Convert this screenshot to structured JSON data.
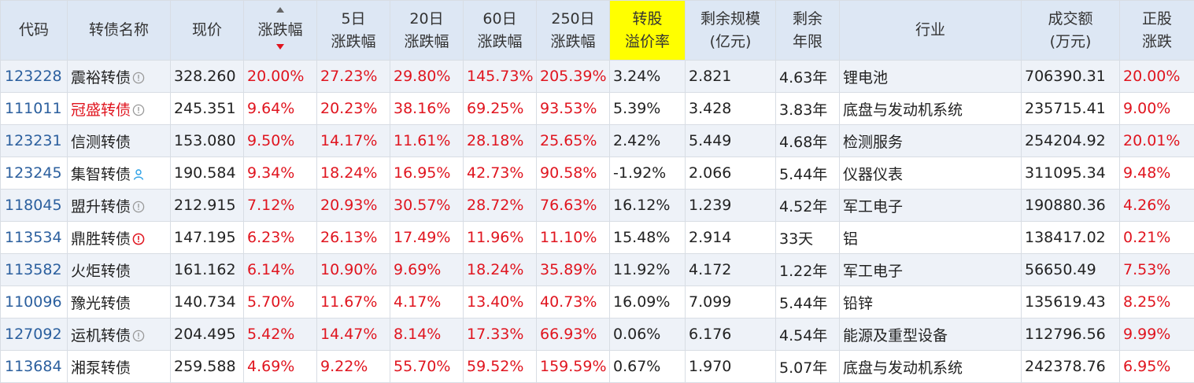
{
  "header": {
    "code": "代码",
    "name": "转债名称",
    "price": "现价",
    "change_pct": "涨跌幅",
    "d5": [
      "5日",
      "涨跌幅"
    ],
    "d20": [
      "20日",
      "涨跌幅"
    ],
    "d60": [
      "60日",
      "涨跌幅"
    ],
    "d250": [
      "250日",
      "涨跌幅"
    ],
    "premium": [
      "转股",
      "溢价率"
    ],
    "remaining_scale": [
      "剩余规模",
      "(亿元)"
    ],
    "remaining_term": [
      "剩余",
      "年限"
    ],
    "industry": "行业",
    "volume": [
      "成交额",
      "(万元)"
    ],
    "stock_change": [
      "正股",
      "涨跌"
    ]
  },
  "rows": [
    {
      "code": "123228",
      "name": "震裕转债",
      "name_red": false,
      "icon": "info-circle-icon",
      "price": "328.260",
      "chg": "20.00%",
      "d5": "27.23%",
      "d20": "29.80%",
      "d60": "145.73%",
      "d250": "205.39%",
      "premium": "3.24%",
      "scale": "2.821",
      "term": "4.63年",
      "industry": "锂电池",
      "volume": "706390.31",
      "stock": "20.00%"
    },
    {
      "code": "111011",
      "name": "冠盛转债",
      "name_red": true,
      "icon": "info-circle-icon",
      "price": "245.351",
      "chg": "9.64%",
      "d5": "20.23%",
      "d20": "38.16%",
      "d60": "69.25%",
      "d250": "93.53%",
      "premium": "5.39%",
      "scale": "3.428",
      "term": "3.83年",
      "industry": "底盘与发动机系统",
      "volume": "235715.41",
      "stock": "9.00%"
    },
    {
      "code": "123231",
      "name": "信测转债",
      "name_red": false,
      "icon": "",
      "price": "153.080",
      "chg": "9.50%",
      "d5": "14.17%",
      "d20": "11.61%",
      "d60": "28.18%",
      "d250": "25.65%",
      "premium": "2.42%",
      "scale": "5.449",
      "term": "4.68年",
      "industry": "检测服务",
      "volume": "254204.92",
      "stock": "20.01%"
    },
    {
      "code": "123245",
      "name": "集智转债",
      "name_red": false,
      "icon": "person-icon",
      "price": "190.584",
      "chg": "9.34%",
      "d5": "18.24%",
      "d20": "16.95%",
      "d60": "42.73%",
      "d250": "90.58%",
      "premium": "-1.92%",
      "scale": "2.066",
      "term": "5.44年",
      "industry": "仪器仪表",
      "volume": "311095.34",
      "stock": "9.48%"
    },
    {
      "code": "118045",
      "name": "盟升转债",
      "name_red": false,
      "icon": "info-circle-icon",
      "price": "212.915",
      "chg": "7.12%",
      "d5": "20.93%",
      "d20": "30.57%",
      "d60": "28.72%",
      "d250": "76.63%",
      "premium": "16.12%",
      "scale": "1.239",
      "term": "4.52年",
      "industry": "军工电子",
      "volume": "190880.36",
      "stock": "4.26%"
    },
    {
      "code": "113534",
      "name": "鼎胜转债",
      "name_red": false,
      "icon": "warning-circle-icon",
      "price": "147.195",
      "chg": "6.23%",
      "d5": "26.13%",
      "d20": "17.49%",
      "d60": "11.96%",
      "d250": "11.10%",
      "premium": "15.48%",
      "scale": "2.914",
      "term": "33天",
      "industry": "铝",
      "volume": "138417.02",
      "stock": "0.21%"
    },
    {
      "code": "113582",
      "name": "火炬转债",
      "name_red": false,
      "icon": "",
      "price": "161.162",
      "chg": "6.14%",
      "d5": "10.90%",
      "d20": "9.69%",
      "d60": "18.24%",
      "d250": "35.89%",
      "premium": "11.92%",
      "scale": "4.172",
      "term": "1.22年",
      "industry": "军工电子",
      "volume": "56650.49",
      "stock": "7.53%"
    },
    {
      "code": "110096",
      "name": "豫光转债",
      "name_red": false,
      "icon": "",
      "price": "140.734",
      "chg": "5.70%",
      "d5": "11.67%",
      "d20": "4.17%",
      "d60": "13.40%",
      "d250": "40.73%",
      "premium": "16.09%",
      "scale": "7.099",
      "term": "5.44年",
      "industry": "铅锌",
      "volume": "135619.43",
      "stock": "8.25%"
    },
    {
      "code": "127092",
      "name": "运机转债",
      "name_red": false,
      "icon": "info-circle-icon",
      "price": "204.495",
      "chg": "5.42%",
      "d5": "14.47%",
      "d20": "8.14%",
      "d60": "17.33%",
      "d250": "66.93%",
      "premium": "0.06%",
      "scale": "6.176",
      "term": "4.54年",
      "industry": "能源及重型设备",
      "volume": "112796.56",
      "stock": "9.99%"
    },
    {
      "code": "113684",
      "name": "湘泵转债",
      "name_red": false,
      "icon": "",
      "price": "259.588",
      "chg": "4.69%",
      "d5": "9.22%",
      "d20": "55.70%",
      "d60": "59.52%",
      "d250": "159.59%",
      "premium": "0.67%",
      "scale": "1.970",
      "term": "5.07年",
      "industry": "底盘与发动机系统",
      "volume": "242378.76",
      "stock": "6.95%"
    }
  ],
  "colors": {
    "header_bg": "#dde7f4",
    "highlight": "#ffff00",
    "up_red": "#e0151f",
    "code_blue": "#2b5f9e",
    "row_alt": "#eef2f8"
  }
}
